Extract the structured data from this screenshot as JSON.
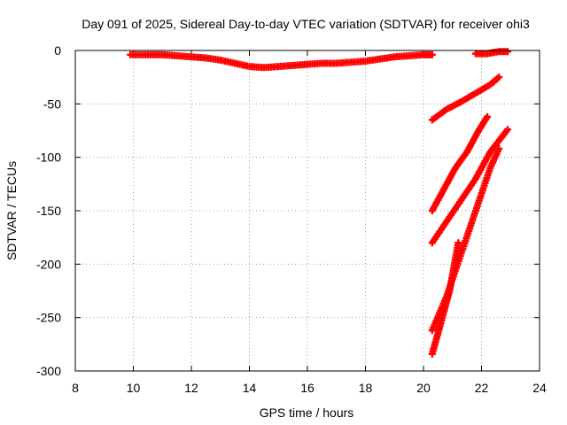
{
  "chart_data": {
    "type": "scatter",
    "title": "Day 091 of 2025, Sidereal Day-to-day VTEC variation (SDTVAR) for receiver ohi3",
    "xlabel": "GPS time / hours",
    "ylabel": "SDTVAR / TECUs",
    "xlim": [
      8,
      24
    ],
    "ylim": [
      -300,
      0
    ],
    "x_ticks": [
      8,
      10,
      12,
      14,
      16,
      18,
      20,
      22,
      24
    ],
    "y_ticks": [
      0,
      -50,
      -100,
      -150,
      -200,
      -250,
      -300
    ],
    "grid": true,
    "legend": "none",
    "marker": "plus",
    "color": "#ff0000",
    "series": [
      {
        "points": [
          [
            9.9,
            -4
          ],
          [
            10.5,
            -4
          ],
          [
            11.0,
            -4
          ],
          [
            11.5,
            -5
          ],
          [
            12.0,
            -6
          ],
          [
            12.5,
            -7
          ],
          [
            13.0,
            -9
          ],
          [
            13.5,
            -12
          ],
          [
            14.0,
            -15
          ],
          [
            14.5,
            -16
          ],
          [
            15.0,
            -15
          ],
          [
            15.5,
            -14
          ],
          [
            16.0,
            -13
          ],
          [
            16.5,
            -12
          ],
          [
            17.0,
            -12
          ],
          [
            17.5,
            -11
          ],
          [
            18.0,
            -10
          ],
          [
            18.5,
            -8
          ],
          [
            19.0,
            -6
          ],
          [
            19.5,
            -5
          ],
          [
            20.0,
            -4
          ],
          [
            20.3,
            -4
          ]
        ]
      },
      {
        "points": [
          [
            21.8,
            -3
          ],
          [
            22.2,
            -3
          ],
          [
            22.6,
            -1
          ],
          [
            22.9,
            -1
          ]
        ]
      },
      {
        "points": [
          [
            20.3,
            -65
          ],
          [
            20.8,
            -55
          ],
          [
            21.3,
            -48
          ],
          [
            21.8,
            -40
          ],
          [
            22.3,
            -32
          ],
          [
            22.6,
            -25
          ]
        ]
      },
      {
        "points": [
          [
            20.3,
            -150
          ],
          [
            20.7,
            -130
          ],
          [
            21.1,
            -110
          ],
          [
            21.5,
            -95
          ],
          [
            21.9,
            -75
          ],
          [
            22.2,
            -62
          ]
        ]
      },
      {
        "points": [
          [
            20.3,
            -180
          ],
          [
            20.8,
            -160
          ],
          [
            21.3,
            -140
          ],
          [
            21.8,
            -120
          ],
          [
            22.3,
            -95
          ],
          [
            22.9,
            -74
          ]
        ]
      },
      {
        "points": [
          [
            20.3,
            -262
          ],
          [
            20.8,
            -230
          ],
          [
            21.3,
            -190
          ],
          [
            21.8,
            -150
          ],
          [
            22.3,
            -110
          ],
          [
            22.6,
            -92
          ]
        ]
      },
      {
        "points": [
          [
            20.3,
            -284
          ],
          [
            20.6,
            -255
          ],
          [
            20.9,
            -225
          ],
          [
            21.2,
            -180
          ]
        ]
      }
    ]
  }
}
